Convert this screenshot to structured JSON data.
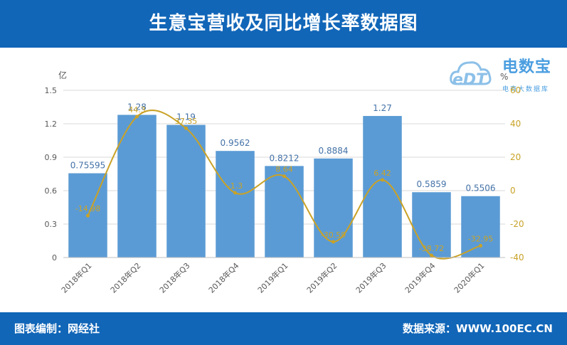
{
  "header": {
    "title": "生意宝营收及同比增长率数据图"
  },
  "footer": {
    "left": "图表编制：网经社",
    "right": "数据来源：WWW.100EC.CN"
  },
  "logo": {
    "cn": "电数宝",
    "en": "eDT",
    "sub": "电商大数据库"
  },
  "colors": {
    "bar": "#5b9bd5",
    "line": "#c9a227",
    "header": "#1166b8",
    "grid": "#d9d9d9"
  },
  "chart_data": {
    "type": "bar",
    "categories": [
      "2018年Q1",
      "2018年Q2",
      "2018年Q3",
      "2018年Q4",
      "2019年Q1",
      "2019年Q2",
      "2019年Q3",
      "2019年Q4",
      "2020年Q1"
    ],
    "series": [
      {
        "values": [
          0.75595,
          1.28,
          1.19,
          0.9562,
          0.8212,
          0.8884,
          1.27,
          0.5859,
          0.5506
        ],
        "labels": [
          "0.75595",
          "1.28",
          "1.19",
          "0.9562",
          "0.8212",
          "0.8884",
          "1.27",
          "0.5859",
          "0.5506"
        ],
        "axis": "left",
        "kind": "bar"
      },
      {
        "values": [
          -14.98,
          44.3,
          37.35,
          -1.3,
          8.64,
          -30.59,
          6.42,
          -38.72,
          -32.95
        ],
        "labels": [
          "-14.98",
          "44.3",
          "37.35",
          "-1.3",
          "8.64",
          "-30.59",
          "6.42",
          "-38.72",
          "-32.95"
        ],
        "axis": "right",
        "kind": "line"
      }
    ],
    "y_left": {
      "unit": "亿",
      "ylim": [
        0,
        1.5
      ],
      "ticks": [
        "0",
        "0.3",
        "0.6",
        "0.9",
        "1.2",
        "1.5"
      ]
    },
    "y_right": {
      "unit": "%",
      "ylim": [
        -40,
        60
      ],
      "ticks": [
        "-40",
        "-20",
        "0",
        "20",
        "40",
        "60"
      ]
    },
    "grid": true
  }
}
